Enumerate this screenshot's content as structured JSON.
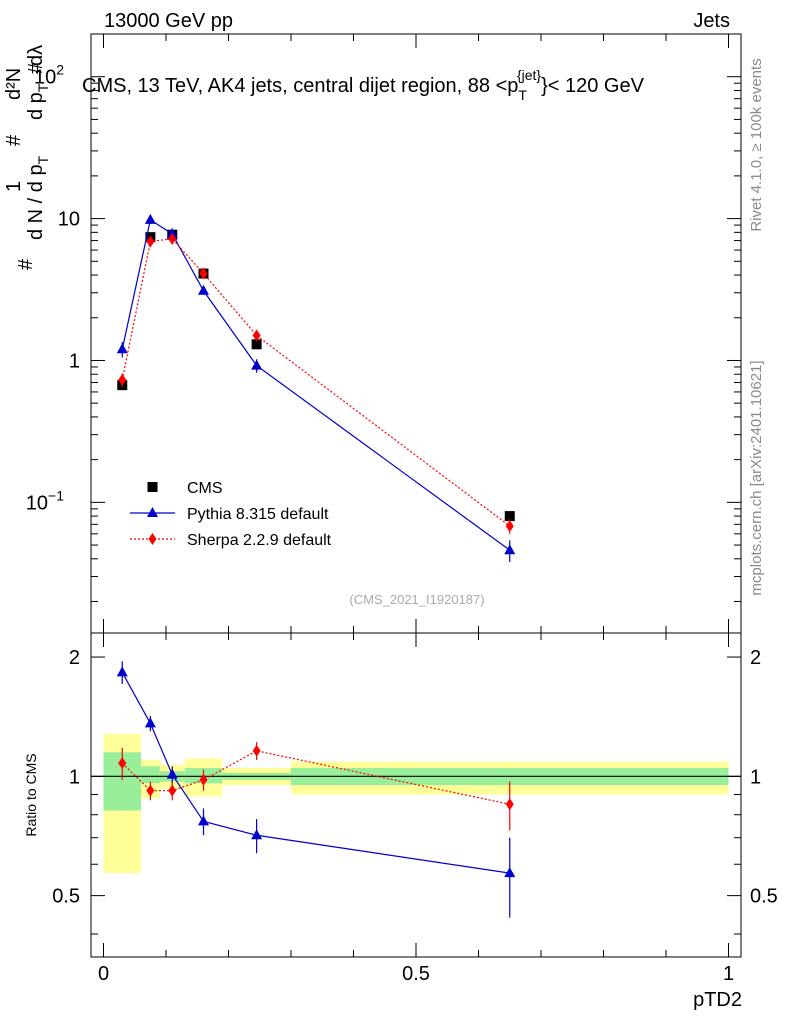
{
  "header": {
    "left": "13000 GeV pp",
    "right": "Jets"
  },
  "side": {
    "top": "Rivet 4.1.0, ≥ 100k events",
    "bottom": "mcplots.cern.ch [arXiv:2401.10621]"
  },
  "chart_data": {
    "type": "scatter",
    "title": "CMS, 13 TeV, AK4 jets, central dijet region, 88 <p_T^{jet}< 120 GeV",
    "title_parts": {
      "main": "CMS, 13 TeV, AK4 jets, central dijet region, 88 <p",
      "sub": "T",
      "sup": "{jet}",
      "tail": "}< 120 GeV"
    },
    "watermark": "(CMS_2021_I1920187)",
    "xlabel": "pTD2",
    "ylabel_parts": {
      "hash": "#",
      "one": "1",
      "denominator": "d N / d p",
      "sub": "T",
      "numerator": "d²N",
      "mid": "d p",
      "lambda": "dλ"
    },
    "ratio_label": "Ratio to CMS",
    "xlim": [
      -0.02,
      1.02
    ],
    "ylim": [
      0.012,
      200
    ],
    "rlim": [
      0.35,
      2.3
    ],
    "x_ticks": [
      {
        "v": 0,
        "label": "0"
      },
      {
        "v": 0.5,
        "label": "0.5"
      },
      {
        "v": 1,
        "label": "1"
      }
    ],
    "y_ticks_labels": [
      {
        "v": 0.1,
        "base": "10",
        "sup": "−1"
      },
      {
        "v": 1,
        "base": "1",
        "sup": ""
      },
      {
        "v": 10,
        "base": "10",
        "sup": ""
      },
      {
        "v": 100,
        "base": "10",
        "sup": "2"
      }
    ],
    "r_ticks": [
      {
        "v": 0.5,
        "label": "0.5"
      },
      {
        "v": 1,
        "label": "1"
      },
      {
        "v": 2,
        "label": "2"
      }
    ],
    "bins": [
      {
        "lo": 0,
        "hi": 0.06
      },
      {
        "lo": 0.06,
        "hi": 0.09
      },
      {
        "lo": 0.09,
        "hi": 0.13
      },
      {
        "lo": 0.13,
        "hi": 0.19
      },
      {
        "lo": 0.19,
        "hi": 0.3
      },
      {
        "lo": 0.3,
        "hi": 1.0
      }
    ],
    "band_green": [
      {
        "lo": 0.82,
        "hi": 1.15
      },
      {
        "lo": 0.96,
        "hi": 1.06
      },
      {
        "lo": 0.97,
        "hi": 1.03
      },
      {
        "lo": 0.96,
        "hi": 1.05
      },
      {
        "lo": 0.98,
        "hi": 1.02
      },
      {
        "lo": 0.95,
        "hi": 1.05
      }
    ],
    "band_yellow": [
      {
        "lo": 0.57,
        "hi": 1.28
      },
      {
        "lo": 0.88,
        "hi": 1.1
      },
      {
        "lo": 0.93,
        "hi": 1.07
      },
      {
        "lo": 0.89,
        "hi": 1.11
      },
      {
        "lo": 0.95,
        "hi": 1.05
      },
      {
        "lo": 0.9,
        "hi": 1.09
      }
    ],
    "series": [
      {
        "name": "CMS",
        "color": "#000000",
        "marker": "square",
        "x": [
          0.03,
          0.075,
          0.11,
          0.16,
          0.245,
          0.65
        ],
        "y": [
          0.67,
          7.4,
          7.7,
          4.1,
          1.3,
          0.08
        ],
        "ratio": [
          1,
          1,
          1,
          1,
          1,
          1
        ]
      },
      {
        "name": "Pythia 8.315 default",
        "color": "#0000cc",
        "marker": "triangle",
        "x": [
          0.03,
          0.075,
          0.11,
          0.16,
          0.245,
          0.65
        ],
        "y": [
          1.2,
          9.8,
          7.8,
          3.1,
          0.92,
          0.046
        ],
        "y_err": [
          0.15,
          0.4,
          0.3,
          0.2,
          0.1,
          0.008
        ],
        "ratio": [
          1.83,
          1.36,
          1.01,
          0.77,
          0.71,
          0.57
        ],
        "ratio_err": [
          0.12,
          0.06,
          0.05,
          0.06,
          0.07,
          0.13
        ]
      },
      {
        "name": "Sherpa 2.2.9 default",
        "color": "#ff0000",
        "marker": "diamond",
        "x": [
          0.03,
          0.075,
          0.11,
          0.16,
          0.245,
          0.65
        ],
        "y": [
          0.73,
          6.9,
          7.2,
          4.1,
          1.5,
          0.068
        ],
        "y_err": [
          0.08,
          0.25,
          0.25,
          0.2,
          0.1,
          0.008
        ],
        "ratio": [
          1.08,
          0.92,
          0.92,
          0.98,
          1.16,
          0.85
        ],
        "ratio_err": [
          0.1,
          0.05,
          0.05,
          0.06,
          0.06,
          0.12
        ]
      }
    ]
  }
}
